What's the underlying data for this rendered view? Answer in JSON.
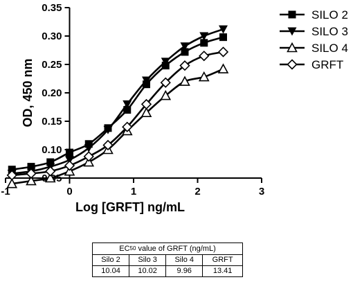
{
  "chart_data": {
    "type": "line",
    "xlabel": "Log [GRFT] ng/mL",
    "ylabel": "OD, 450 nm",
    "xlim": [
      -1,
      3
    ],
    "ylim": [
      0.05,
      0.35
    ],
    "x_ticks": [
      "-1",
      "0",
      "1",
      "2",
      "3"
    ],
    "y_ticks": [
      "0.05",
      "0.10",
      "0.15",
      "0.20",
      "0.25",
      "0.30",
      "0.35"
    ],
    "legend_position": "top-right",
    "series": [
      {
        "name": "SILO 2",
        "marker": "square",
        "x": [
          -0.9,
          -0.6,
          -0.3,
          0,
          0.3,
          0.6,
          0.9,
          1.2,
          1.5,
          1.8,
          2.1,
          2.4
        ],
        "y": [
          0.065,
          0.07,
          0.078,
          0.095,
          0.11,
          0.138,
          0.17,
          0.215,
          0.248,
          0.272,
          0.288,
          0.298
        ]
      },
      {
        "name": "SILO 3",
        "marker": "triangle-down",
        "x": [
          -0.9,
          -0.6,
          -0.3,
          0,
          0.3,
          0.6,
          0.9,
          1.2,
          1.5,
          1.8,
          2.1,
          2.4
        ],
        "y": [
          0.058,
          0.062,
          0.07,
          0.082,
          0.103,
          0.135,
          0.18,
          0.222,
          0.255,
          0.282,
          0.3,
          0.312
        ]
      },
      {
        "name": "SILO 4",
        "marker": "triangle-open",
        "x": [
          -0.9,
          -0.6,
          -0.3,
          0,
          0.3,
          0.6,
          0.9,
          1.2,
          1.5,
          1.8,
          2.1,
          2.4
        ],
        "y": [
          0.04,
          0.045,
          0.05,
          0.062,
          0.078,
          0.1,
          0.133,
          0.165,
          0.195,
          0.22,
          0.228,
          0.242
        ]
      },
      {
        "name": "GRFT",
        "marker": "diamond-open",
        "x": [
          -0.9,
          -0.6,
          -0.3,
          0,
          0.3,
          0.6,
          0.9,
          1.2,
          1.5,
          1.8,
          2.1,
          2.4
        ],
        "y": [
          0.055,
          0.058,
          0.062,
          0.072,
          0.088,
          0.108,
          0.14,
          0.18,
          0.218,
          0.248,
          0.265,
          0.272
        ]
      }
    ]
  },
  "table": {
    "caption_prefix": "EC",
    "caption_sub": "50",
    "caption_suffix": " value of GRFT (ng/mL)",
    "headers": [
      "Silo 2",
      "Silo 3",
      "Silo 4",
      "GRFT"
    ],
    "values": [
      "10.04",
      "10.02",
      "9.96",
      "13.41"
    ]
  }
}
